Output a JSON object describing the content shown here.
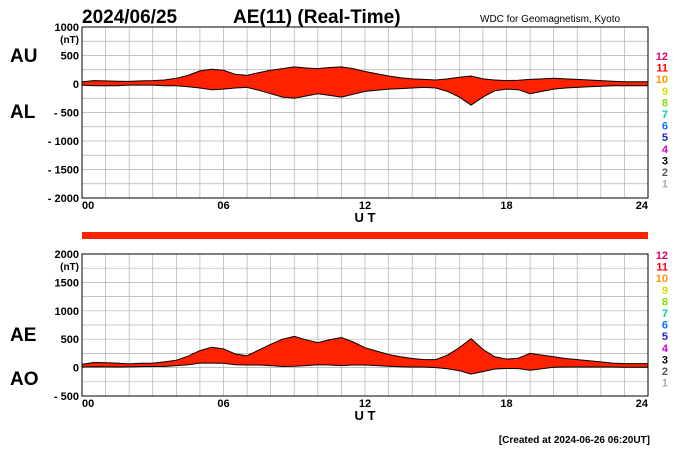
{
  "header": {
    "date": "2024/06/25",
    "title": "AE(11) (Real-Time)",
    "source": "WDC for Geomagnetism, Kyoto"
  },
  "footer": {
    "created": "[Created at 2024-06-26 06:20UT]"
  },
  "colors": {
    "fill": "#ff2200",
    "bar": "#ff2200",
    "grid": "#b0b0b0",
    "station_colors": [
      "#e00070",
      "#ff0000",
      "#ff9900",
      "#dddd00",
      "#88dd00",
      "#00ccaa",
      "#0077ff",
      "#2222cc",
      "#cc00cc",
      "#000000",
      "#555555",
      "#aaaaaa"
    ]
  },
  "station_labels": [
    "12",
    "11",
    "10",
    "9",
    "8",
    "7",
    "6",
    "5",
    "4",
    "3",
    "2",
    "1"
  ],
  "chart_data": [
    {
      "type": "area",
      "panel": "top",
      "series_labels": [
        "AU",
        "AL"
      ],
      "unit": "(nT)",
      "xlabel": "U T",
      "x_ticks": [
        "00",
        "06",
        "12",
        "18",
        "24"
      ],
      "xlim": [
        0,
        24
      ],
      "ylim": [
        -2000,
        1000
      ],
      "y_ticks": [
        1000,
        500,
        0,
        -500,
        -1000,
        -1500,
        -2000
      ],
      "y_tick_labels": [
        "1000",
        "500",
        "0",
        "- 500",
        "- 1000",
        "- 1500",
        "- 2000"
      ],
      "grid": true,
      "x": [
        0,
        0.5,
        1,
        1.5,
        2,
        2.5,
        3,
        3.5,
        4,
        4.5,
        5,
        5.5,
        6,
        6.5,
        7,
        7.5,
        8,
        8.5,
        9,
        9.5,
        10,
        10.5,
        11,
        11.5,
        12,
        12.5,
        13,
        13.5,
        14,
        14.5,
        15,
        15.5,
        16,
        16.5,
        17,
        17.5,
        18,
        18.5,
        19,
        19.5,
        20,
        20.5,
        21,
        21.5,
        22,
        22.5,
        23,
        23.5,
        24
      ],
      "upper": [
        40,
        60,
        55,
        50,
        45,
        55,
        60,
        70,
        100,
        150,
        230,
        260,
        240,
        170,
        150,
        200,
        240,
        270,
        300,
        280,
        270,
        290,
        300,
        270,
        220,
        180,
        140,
        110,
        90,
        80,
        70,
        90,
        120,
        140,
        90,
        70,
        60,
        65,
        80,
        90,
        100,
        90,
        80,
        70,
        60,
        50,
        40,
        40,
        40
      ],
      "lower": [
        -20,
        -30,
        -30,
        -30,
        -20,
        -20,
        -20,
        -30,
        -30,
        -50,
        -70,
        -100,
        -90,
        -70,
        -60,
        -110,
        -170,
        -230,
        -250,
        -210,
        -170,
        -200,
        -230,
        -180,
        -130,
        -110,
        -90,
        -80,
        -70,
        -60,
        -70,
        -130,
        -230,
        -370,
        -230,
        -120,
        -90,
        -100,
        -170,
        -130,
        -90,
        -70,
        -60,
        -50,
        -40,
        -30,
        -30,
        -30,
        -30
      ]
    },
    {
      "type": "area",
      "panel": "bottom",
      "series_labels": [
        "AE",
        "AO"
      ],
      "unit": "(nT)",
      "xlabel": "U T",
      "x_ticks": [
        "00",
        "06",
        "12",
        "18",
        "24"
      ],
      "xlim": [
        0,
        24
      ],
      "ylim": [
        -500,
        2000
      ],
      "y_ticks": [
        2000,
        1500,
        1000,
        500,
        0,
        -500
      ],
      "y_tick_labels": [
        "2000",
        "1500",
        "1000",
        "500",
        "0",
        "- 500"
      ],
      "grid": true,
      "x": [
        0,
        0.5,
        1,
        1.5,
        2,
        2.5,
        3,
        3.5,
        4,
        4.5,
        5,
        5.5,
        6,
        6.5,
        7,
        7.5,
        8,
        8.5,
        9,
        9.5,
        10,
        10.5,
        11,
        11.5,
        12,
        12.5,
        13,
        13.5,
        14,
        14.5,
        15,
        15.5,
        16,
        16.5,
        17,
        17.5,
        18,
        18.5,
        19,
        19.5,
        20,
        20.5,
        21,
        21.5,
        22,
        22.5,
        23,
        23.5,
        24
      ],
      "upper": [
        60,
        90,
        85,
        80,
        65,
        75,
        80,
        100,
        130,
        200,
        300,
        360,
        330,
        240,
        210,
        310,
        410,
        500,
        550,
        490,
        440,
        490,
        530,
        450,
        350,
        290,
        230,
        190,
        160,
        140,
        140,
        220,
        350,
        510,
        320,
        190,
        150,
        165,
        250,
        220,
        190,
        160,
        140,
        120,
        100,
        80,
        70,
        70,
        70
      ],
      "lower": [
        10,
        15,
        12,
        10,
        12,
        17,
        20,
        20,
        35,
        50,
        80,
        80,
        75,
        50,
        45,
        45,
        35,
        20,
        25,
        35,
        50,
        45,
        35,
        45,
        45,
        35,
        25,
        15,
        10,
        10,
        0,
        -20,
        -55,
        -115,
        -70,
        -25,
        -15,
        -17,
        -45,
        -20,
        5,
        10,
        10,
        10,
        10,
        10,
        5,
        5,
        5
      ],
      "bar_note": "solid red bar above panel"
    }
  ]
}
